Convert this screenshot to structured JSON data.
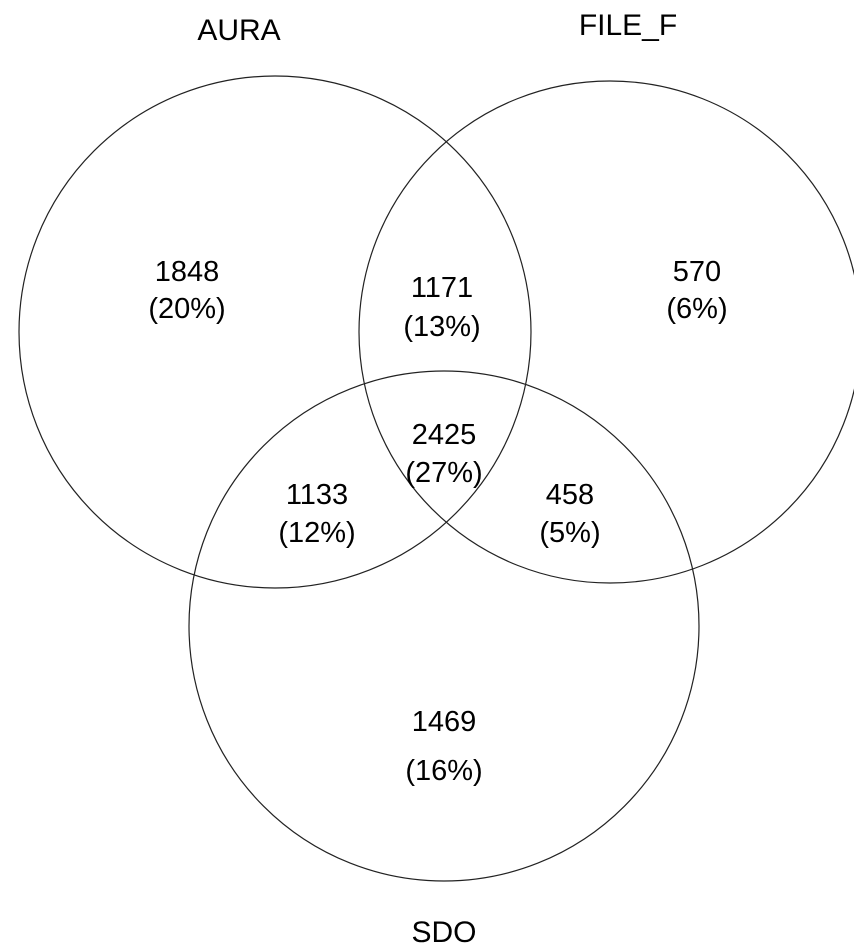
{
  "sets": [
    {
      "id": "aura",
      "label": "AURA"
    },
    {
      "id": "file_f",
      "label": "FILE_F"
    },
    {
      "id": "sdo",
      "label": "SDO"
    }
  ],
  "regions": {
    "aura_only": {
      "count": "1848",
      "percent": "(20%)"
    },
    "aura_file_f": {
      "count": "1171",
      "percent": "(13%)"
    },
    "file_f_only": {
      "count": "570",
      "percent": "(6%)"
    },
    "all_three": {
      "count": "2425",
      "percent": "(27%)"
    },
    "aura_sdo": {
      "count": "1133",
      "percent": "(12%)"
    },
    "file_f_sdo": {
      "count": "458",
      "percent": "(5%)"
    },
    "sdo_only": {
      "count": "1469",
      "percent": "(16%)"
    }
  }
}
